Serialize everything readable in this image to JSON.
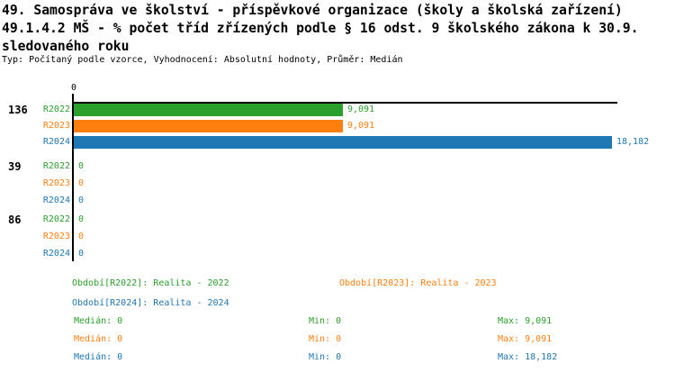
{
  "header": {
    "title_line1": "49. Samospráva ve školství - příspěvkové organizace (školy a školská zařízení)",
    "title_line2": "49.1.4.2 MŠ - % počet tříd zřízených podle § 16 odst. 9 školského zákona k 30.9.",
    "title_line3": "sledovaného roku",
    "meta": "Typ: Počítaný podle vzorce, Vyhodnocení: Absolutní hodnoty, Průměr: Medián"
  },
  "colors": {
    "r2022": "#2ca02c",
    "r2023": "#ff7f0e",
    "r2024": "#1f77b4",
    "axis": "#000000"
  },
  "chart_data": {
    "type": "bar",
    "orientation": "horizontal",
    "title": "49.1.4.2 MŠ - % počet tříd zřízených podle § 16 odst. 9 školského zákona k 30.9. sledovaného roku",
    "axis_tick_label": "0",
    "xlim": [
      0,
      18.3
    ],
    "grid": false,
    "categories": [
      "136",
      "39",
      "86"
    ],
    "series": [
      {
        "name": "R2022",
        "legend": "Období[R2022]: Realita - 2022",
        "color": "#2ca02c",
        "values": [
          9.091,
          0,
          0
        ],
        "value_labels": [
          "9,091",
          "0",
          "0"
        ]
      },
      {
        "name": "R2023",
        "legend": "Období[R2023]: Realita - 2023",
        "color": "#ff7f0e",
        "values": [
          9.091,
          0,
          0
        ],
        "value_labels": [
          "9,091",
          "0",
          "0"
        ]
      },
      {
        "name": "R2024",
        "legend": "Období[R2024]: Realita - 2024",
        "color": "#1f77b4",
        "values": [
          18.182,
          0,
          0
        ],
        "value_labels": [
          "18,182",
          "0",
          "0"
        ]
      }
    ]
  },
  "legend": [
    {
      "text": "Období[R2022]: Realita - 2022",
      "color": "#2ca02c"
    },
    {
      "text": "Období[R2023]: Realita - 2023",
      "color": "#ff7f0e"
    },
    {
      "text": "Období[R2024]: Realita - 2024",
      "color": "#1f77b4"
    }
  ],
  "stats": [
    {
      "median": "Medián: 0",
      "min": "Min: 0",
      "max": "Max: 9,091",
      "color": "#2ca02c"
    },
    {
      "median": "Medián: 0",
      "min": "Min: 0",
      "max": "Max: 9,091",
      "color": "#ff7f0e"
    },
    {
      "median": "Medián: 0",
      "min": "Min: 0",
      "max": "Max: 18,182",
      "color": "#1f77b4"
    }
  ]
}
